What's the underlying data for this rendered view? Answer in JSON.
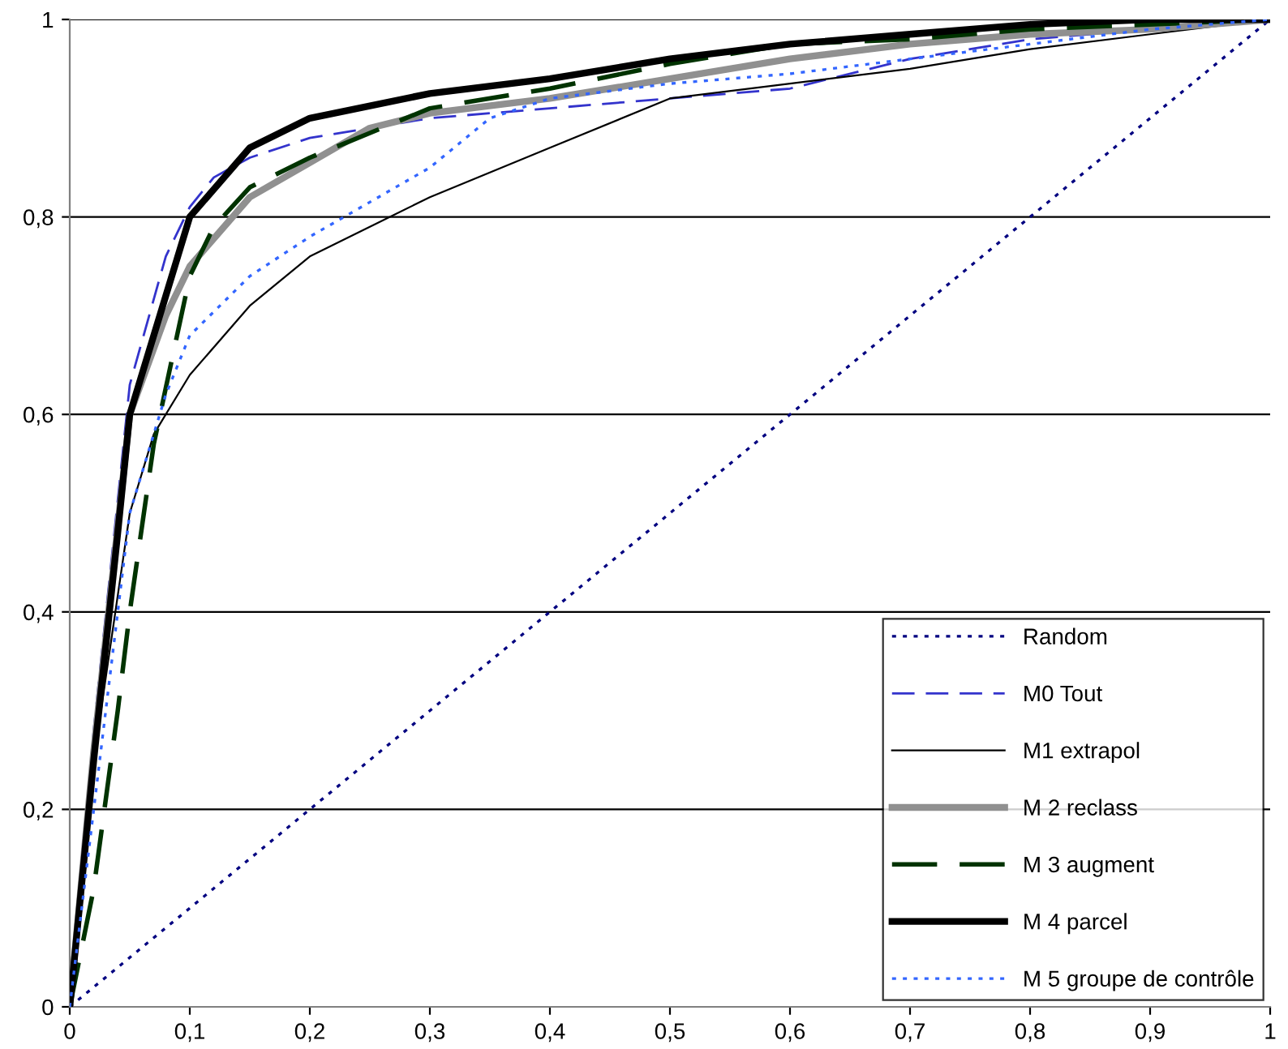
{
  "chart_data": {
    "type": "line",
    "legend": "bottom right",
    "grid": "y",
    "xlim": [
      0,
      1
    ],
    "ylim": [
      0,
      1
    ],
    "xticks": [
      0,
      {
        "value": 0.1,
        "label": "0,1"
      },
      {
        "value": 0.2,
        "label": "0,2"
      },
      {
        "value": 0.3,
        "label": "0,3"
      },
      {
        "value": 0.4,
        "label": "0,4"
      },
      {
        "value": 0.5,
        "label": "0,5"
      },
      {
        "value": 0.6,
        "label": "0,6"
      },
      {
        "value": 0.7,
        "label": "0,7"
      },
      {
        "value": 0.8,
        "label": "0,8"
      },
      {
        "value": 0.9,
        "label": "0,9"
      },
      1
    ],
    "yticks": [
      0,
      {
        "value": 0.2,
        "label": "0,2"
      },
      {
        "value": 0.4,
        "label": "0,4"
      },
      {
        "value": 0.6,
        "label": "0,6"
      },
      {
        "value": 0.8,
        "label": "0,8"
      },
      1
    ],
    "series": [
      {
        "name": "Random",
        "color": "#000080",
        "line_style": "dotted",
        "x": [
          0,
          1
        ],
        "values": [
          0,
          1
        ]
      },
      {
        "name": "M0 Tout",
        "color": "#3333cc",
        "line_style": "dashed",
        "x": [
          0,
          0.02,
          0.05,
          0.08,
          0.1,
          0.12,
          0.15,
          0.2,
          0.3,
          0.4,
          0.5,
          0.6,
          0.7,
          0.8,
          0.9,
          1
        ],
        "values": [
          0,
          0.28,
          0.63,
          0.76,
          0.81,
          0.84,
          0.86,
          0.88,
          0.9,
          0.91,
          0.92,
          0.93,
          0.96,
          0.98,
          0.99,
          1
        ]
      },
      {
        "name": "M1 extrapol",
        "color": "#000000",
        "line_style": "solid",
        "x": [
          0,
          0.02,
          0.05,
          0.07,
          0.1,
          0.15,
          0.2,
          0.25,
          0.3,
          0.4,
          0.5,
          0.6,
          0.7,
          0.8,
          0.9,
          1
        ],
        "values": [
          0,
          0.25,
          0.5,
          0.58,
          0.64,
          0.71,
          0.76,
          0.79,
          0.82,
          0.87,
          0.92,
          0.935,
          0.95,
          0.97,
          0.985,
          1
        ]
      },
      {
        "name": "M 2 reclass",
        "color": "#909090",
        "line_style": "solid",
        "x": [
          0,
          0.02,
          0.05,
          0.08,
          0.1,
          0.15,
          0.2,
          0.25,
          0.3,
          0.4,
          0.5,
          0.6,
          0.7,
          0.8,
          0.9,
          1
        ],
        "values": [
          0,
          0.26,
          0.6,
          0.7,
          0.75,
          0.82,
          0.855,
          0.89,
          0.905,
          0.92,
          0.94,
          0.96,
          0.975,
          0.985,
          0.99,
          1
        ]
      },
      {
        "name": "M 3 augment",
        "color": "#003300",
        "line_style": "dashed",
        "x": [
          0,
          0.02,
          0.04,
          0.05,
          0.07,
          0.1,
          0.12,
          0.15,
          0.2,
          0.3,
          0.4,
          0.5,
          0.6,
          0.7,
          0.8,
          1
        ],
        "values": [
          0,
          0.12,
          0.3,
          0.4,
          0.57,
          0.74,
          0.79,
          0.83,
          0.86,
          0.91,
          0.93,
          0.955,
          0.975,
          0.98,
          0.99,
          1
        ]
      },
      {
        "name": "M 4 parcel",
        "color": "#000000",
        "line_style": "solid",
        "x": [
          0,
          0.02,
          0.04,
          0.05,
          0.08,
          0.1,
          0.15,
          0.2,
          0.3,
          0.4,
          0.5,
          0.6,
          0.7,
          0.8,
          0.9,
          1
        ],
        "values": [
          0,
          0.25,
          0.48,
          0.6,
          0.72,
          0.8,
          0.87,
          0.9,
          0.925,
          0.94,
          0.96,
          0.975,
          0.985,
          0.995,
          1,
          1
        ]
      },
      {
        "name": "M 5 groupe de contrôle",
        "color": "#3366ff",
        "line_style": "dotted",
        "x": [
          0,
          0.02,
          0.05,
          0.08,
          0.1,
          0.15,
          0.2,
          0.3,
          0.35,
          0.4,
          0.5,
          0.6,
          0.7,
          0.8,
          0.9,
          1
        ],
        "values": [
          0,
          0.2,
          0.5,
          0.62,
          0.68,
          0.74,
          0.78,
          0.85,
          0.9,
          0.92,
          0.935,
          0.945,
          0.96,
          0.975,
          0.99,
          1
        ]
      }
    ]
  }
}
